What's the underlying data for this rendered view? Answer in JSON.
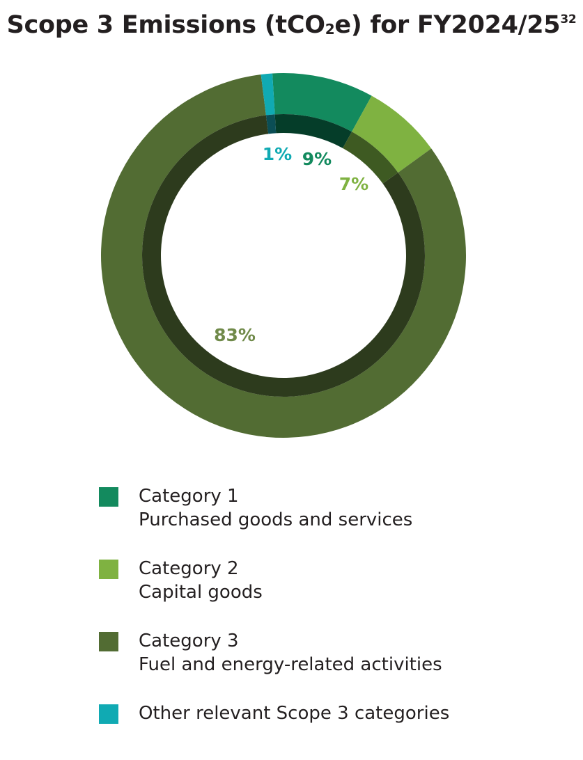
{
  "title": {
    "main": "Scope 3 Emissions (tCO",
    "sub": "2",
    "after": "e) for FY2024/25",
    "footnote": "32"
  },
  "chart_data": {
    "type": "pie",
    "title": "Scope 3 Emissions (tCO2e) for FY2024/25",
    "series": [
      {
        "name": "Category 1 Purchased goods and services",
        "value": 9,
        "label": "9%",
        "color": "#138a5e",
        "inner_color": "#053d29",
        "label_color": "#138a5e"
      },
      {
        "name": "Category 2 Capital goods",
        "value": 7,
        "label": "7%",
        "color": "#7fb241",
        "inner_color": "#3e5a22",
        "label_color": "#7fb241"
      },
      {
        "name": "Category 3 Fuel and energy-related activities",
        "value": 83,
        "label": "83%",
        "color": "#526c33",
        "inner_color": "#2d3b1d",
        "label_color": "#708a4a"
      },
      {
        "name": "Other relevant Scope 3 categories",
        "value": 1,
        "label": "1%",
        "color": "#10aab3",
        "inner_color": "#0b4e55",
        "label_color": "#10aab3"
      }
    ],
    "legend_placement": "bottom"
  },
  "legend": [
    {
      "line1": "Category 1",
      "line2": "Purchased goods and services",
      "color": "#138a5e"
    },
    {
      "line1": "Category 2",
      "line2": "Capital goods",
      "color": "#7fb241"
    },
    {
      "line1": "Category 3",
      "line2": "Fuel and energy-related activities",
      "color": "#526c33"
    },
    {
      "line1": "Other relevant Scope 3 categories",
      "line2": "",
      "color": "#10aab3"
    }
  ]
}
